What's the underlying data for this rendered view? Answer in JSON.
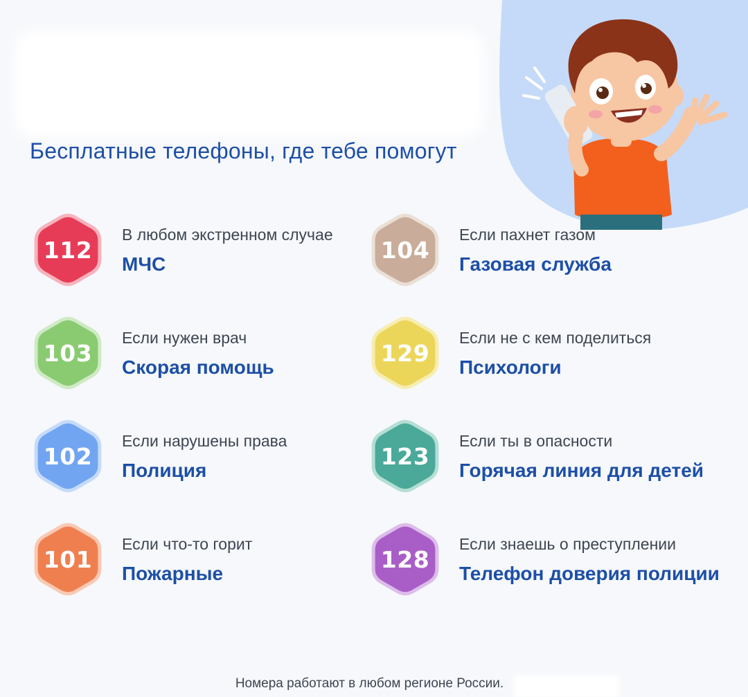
{
  "title": "Бесплатные телефоны, где тебе помогут",
  "colors": {
    "title": "#1d4fa6",
    "service": "#1d4fa6",
    "condition": "#3e4552",
    "blob": "#c5daf8"
  },
  "illustration": "boy-talking-on-phone",
  "contacts": [
    {
      "number": "112",
      "condition": "В любом экстренном случае",
      "service": "МЧС",
      "color": "#e73c57",
      "rim": "#f7b3bd"
    },
    {
      "number": "104",
      "condition": "Если пахнет газом",
      "service": "Газовая служба",
      "color": "#c9ac99",
      "rim": "#eadfd6"
    },
    {
      "number": "103",
      "condition": "Если нужен врач",
      "service": "Скорая помощь",
      "color": "#8acb72",
      "rim": "#cfeac4"
    },
    {
      "number": "129",
      "condition": "Если не с кем поделиться",
      "service": "Психологи",
      "color": "#ebd65a",
      "rim": "#f7edb0"
    },
    {
      "number": "102",
      "condition": "Если нарушены права",
      "service": "Полиция",
      "color": "#72a5f1",
      "rim": "#c6dbfa"
    },
    {
      "number": "123",
      "condition": "Если ты в опасности",
      "service": "Горячая линия для детей",
      "color": "#4aa998",
      "rim": "#b5ded5"
    },
    {
      "number": "101",
      "condition": "Если что-то горит",
      "service": "Пожарные",
      "color": "#f07f4f",
      "rim": "#f9c9b2"
    },
    {
      "number": "128",
      "condition": "Если знаешь о преступлении",
      "service": "Телефон доверия полиции",
      "color": "#a95ec7",
      "rim": "#dcbde9"
    }
  ],
  "footer": "Номера работают в любом регионе России."
}
